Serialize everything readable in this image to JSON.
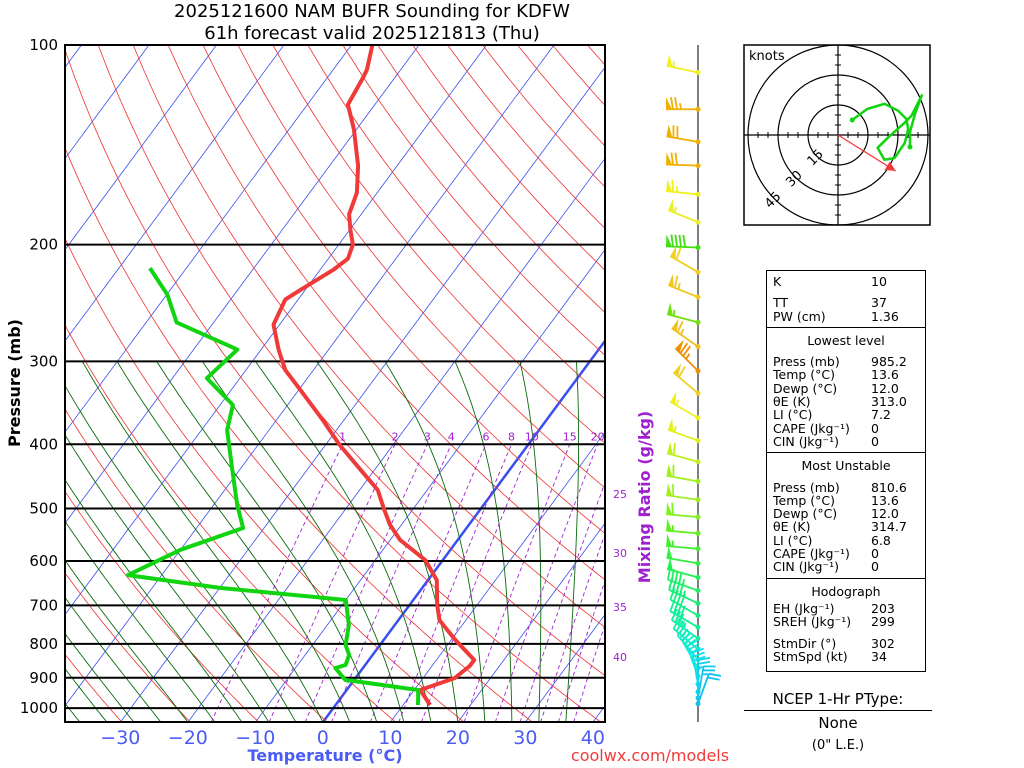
{
  "header": {
    "title_line1": "2025121600 NAM BUFR Sounding for KDFW",
    "title_line2": "61h forecast valid 2025121813 (Thu)"
  },
  "footer": {
    "credit": "coolwx.com/models"
  },
  "colors": {
    "temperature": "#f03a3a",
    "dewpoint": "#11d411",
    "isotherm": "#3a4ff0",
    "dry_adiabat": "#f03030",
    "moist_adiabat": "#0a6a0a",
    "mixing_ratio": "#a020d0",
    "storm_motion": "#f03a3a"
  },
  "chart_data": {
    "type": "line",
    "subtype": "skew-t log-p",
    "xlabel": "Temperature (°C)",
    "ylabel": "Pressure (mb)",
    "mixing_ratio_label": "Mixing Ratio (g/kg)",
    "ylim": [
      1050,
      100
    ],
    "xlim_at_bottom": [
      -38,
      42
    ],
    "pressure_ticks": [
      "100",
      "200",
      "300",
      "400",
      "500",
      "600",
      "700",
      "800",
      "900",
      "1000"
    ],
    "temperature_ticks": [
      "−30",
      "−20",
      "−10",
      "0",
      "10",
      "20",
      "30",
      "40"
    ],
    "mixing_ratio_top_labels": [
      "1",
      "2",
      "3",
      "4",
      "6",
      "8",
      "10",
      "15",
      "20"
    ],
    "mixing_ratio_side_labels": [
      "25",
      "30",
      "35",
      "40"
    ],
    "series": [
      {
        "name": "Temperature",
        "points": [
          [
            989,
            14.0
          ],
          [
            939,
            10.9
          ],
          [
            901,
            14.7
          ],
          [
            864,
            15.6
          ],
          [
            846,
            15.6
          ],
          [
            789,
            10.6
          ],
          [
            737,
            6.1
          ],
          [
            699,
            4.1
          ],
          [
            641,
            1.3
          ],
          [
            598,
            -2.6
          ],
          [
            558,
            -8.5
          ],
          [
            529,
            -11.7
          ],
          [
            500,
            -14.4
          ],
          [
            469,
            -17.3
          ],
          [
            437,
            -22.1
          ],
          [
            401,
            -27.9
          ],
          [
            368,
            -33.1
          ],
          [
            331,
            -39.8
          ],
          [
            309,
            -44.2
          ],
          [
            288,
            -47.4
          ],
          [
            264,
            -50.9
          ],
          [
            242,
            -51.9
          ],
          [
            234,
            -50.7
          ],
          [
            218,
            -48.0
          ],
          [
            210,
            -47.1
          ],
          [
            200,
            -47.9
          ],
          [
            190,
            -49.9
          ],
          [
            180,
            -51.8
          ],
          [
            167,
            -53.0
          ],
          [
            152,
            -55.8
          ],
          [
            134,
            -60.4
          ],
          [
            123,
            -64.0
          ],
          [
            112,
            -64.7
          ],
          [
            109,
            -65.0
          ],
          [
            100,
            -66.9
          ]
        ]
      },
      {
        "name": "Dewpoint",
        "points": [
          [
            989,
            12.2
          ],
          [
            939,
            10.6
          ],
          [
            913,
            1.1
          ],
          [
            907,
            -1.3
          ],
          [
            870,
            -4.1
          ],
          [
            861,
            -2.9
          ],
          [
            831,
            -3.5
          ],
          [
            803,
            -5.1
          ],
          [
            749,
            -6.8
          ],
          [
            687,
            -10.0
          ],
          [
            659,
            -29.8
          ],
          [
            630,
            -45.0
          ],
          [
            577,
            -40.0
          ],
          [
            535,
            -33.1
          ],
          [
            494,
            -36.5
          ],
          [
            437,
            -41.1
          ],
          [
            381,
            -46.2
          ],
          [
            349,
            -48.1
          ],
          [
            318,
            -54.9
          ],
          [
            288,
            -53.5
          ],
          [
            262,
            -65.5
          ],
          [
            238,
            -69.9
          ],
          [
            217,
            -75.4
          ]
        ]
      }
    ],
    "wind_barbs": [
      {
        "p": 110,
        "dir": 282,
        "spd": 55,
        "color": "#f0f020"
      },
      {
        "p": 125,
        "dir": 270,
        "spd": 75,
        "color": "#f0b000"
      },
      {
        "p": 140,
        "dir": 280,
        "spd": 70,
        "color": "#f0b000"
      },
      {
        "p": 152,
        "dir": 272,
        "spd": 70,
        "color": "#f0b000"
      },
      {
        "p": 168,
        "dir": 276,
        "spd": 65,
        "color": "#f0f020"
      },
      {
        "p": 185,
        "dir": 292,
        "spd": 55,
        "color": "#e8f020"
      },
      {
        "p": 202,
        "dir": 272,
        "spd": 90,
        "color": "#40e010"
      },
      {
        "p": 220,
        "dir": 300,
        "spd": 60,
        "color": "#f0d020"
      },
      {
        "p": 240,
        "dir": 292,
        "spd": 65,
        "color": "#f0c820"
      },
      {
        "p": 262,
        "dir": 285,
        "spd": 55,
        "color": "#70e010"
      },
      {
        "p": 285,
        "dir": 305,
        "spd": 65,
        "color": "#f0c020"
      },
      {
        "p": 310,
        "dir": 315,
        "spd": 75,
        "color": "#f09000"
      },
      {
        "p": 335,
        "dir": 310,
        "spd": 60,
        "color": "#f0d020"
      },
      {
        "p": 365,
        "dir": 300,
        "spd": 55,
        "color": "#f0f020"
      },
      {
        "p": 395,
        "dir": 290,
        "spd": 55,
        "color": "#e0f020"
      },
      {
        "p": 425,
        "dir": 285,
        "spd": 60,
        "color": "#c0f020"
      },
      {
        "p": 455,
        "dir": 280,
        "spd": 60,
        "color": "#a0f020"
      },
      {
        "p": 485,
        "dir": 278,
        "spd": 60,
        "color": "#a0f020"
      },
      {
        "p": 515,
        "dir": 275,
        "spd": 60,
        "color": "#80f020"
      },
      {
        "p": 545,
        "dir": 275,
        "spd": 55,
        "color": "#60f020"
      },
      {
        "p": 575,
        "dir": 275,
        "spd": 55,
        "color": "#40f030"
      },
      {
        "p": 605,
        "dir": 280,
        "spd": 50,
        "color": "#30f040"
      },
      {
        "p": 635,
        "dir": 285,
        "spd": 50,
        "color": "#20f050"
      },
      {
        "p": 665,
        "dir": 290,
        "spd": 45,
        "color": "#20f060"
      },
      {
        "p": 695,
        "dir": 295,
        "spd": 45,
        "color": "#10f070"
      },
      {
        "p": 725,
        "dir": 300,
        "spd": 40,
        "color": "#10f080"
      },
      {
        "p": 755,
        "dir": 300,
        "spd": 40,
        "color": "#10f090"
      },
      {
        "p": 785,
        "dir": 305,
        "spd": 35,
        "color": "#10f0a0"
      },
      {
        "p": 815,
        "dir": 310,
        "spd": 35,
        "color": "#10f0b0"
      },
      {
        "p": 845,
        "dir": 320,
        "spd": 35,
        "color": "#10f0c0"
      },
      {
        "p": 870,
        "dir": 330,
        "spd": 30,
        "color": "#10f0d0"
      },
      {
        "p": 895,
        "dir": 340,
        "spd": 30,
        "color": "#10e8e0"
      },
      {
        "p": 920,
        "dir": 350,
        "spd": 30,
        "color": "#10e0f0"
      },
      {
        "p": 945,
        "dir": 0,
        "spd": 25,
        "color": "#10d0f0"
      },
      {
        "p": 965,
        "dir": 10,
        "spd": 25,
        "color": "#10c8f0"
      },
      {
        "p": 985,
        "dir": 20,
        "spd": 20,
        "color": "#10c0f0"
      }
    ],
    "hodograph": {
      "units_label": "knots",
      "ring_labels": [
        "15",
        "30",
        "45"
      ],
      "ring_values": [
        15,
        30,
        45
      ],
      "uv_knots": [
        [
          7.1,
          7.5
        ],
        [
          14.6,
          13.0
        ],
        [
          23.2,
          15.6
        ],
        [
          30.0,
          12.2
        ],
        [
          34.2,
          8.0
        ],
        [
          35.1,
          2.9
        ],
        [
          33.4,
          -3.9
        ],
        [
          28.3,
          -11.5
        ],
        [
          23.2,
          -12.4
        ],
        [
          19.8,
          -6.4
        ],
        [
          24.9,
          -1.4
        ],
        [
          32.5,
          5.4
        ],
        [
          36.8,
          9.7
        ],
        [
          41.9,
          19.8
        ],
        [
          38.5,
          10.5
        ],
        [
          36.0,
          1.5
        ],
        [
          36.0,
          -6.0
        ]
      ],
      "storm_motion": {
        "dir_deg": 302,
        "speed_kt": 34
      }
    }
  },
  "stats": {
    "indices": [
      {
        "label": "K",
        "value": "10"
      },
      {
        "label": "TT",
        "value": "37"
      },
      {
        "label": "PW (cm)",
        "value": "1.36"
      }
    ],
    "lowest_level": {
      "title": "Lowest level",
      "rows": [
        {
          "label": "Press (mb)",
          "value": "985.2"
        },
        {
          "label": "Temp (°C)",
          "value": "13.6"
        },
        {
          "label": "Dewp (°C)",
          "value": "12.0"
        },
        {
          "label": "θE (K)",
          "value": "313.0"
        },
        {
          "label": "LI (°C)",
          "value": "7.2"
        },
        {
          "label": "CAPE (Jkg⁻¹)",
          "value": "0"
        },
        {
          "label": "CIN (Jkg⁻¹)",
          "value": "0"
        }
      ]
    },
    "most_unstable": {
      "title": "Most Unstable",
      "rows": [
        {
          "label": "Press (mb)",
          "value": "810.6"
        },
        {
          "label": "Temp (°C)",
          "value": "13.6"
        },
        {
          "label": "Dewp (°C)",
          "value": "12.0"
        },
        {
          "label": "θE (K)",
          "value": "314.7"
        },
        {
          "label": "LI (°C)",
          "value": "6.8"
        },
        {
          "label": "CAPE (Jkg⁻¹)",
          "value": "0"
        },
        {
          "label": "CIN (Jkg⁻¹)",
          "value": "0"
        }
      ]
    },
    "hodograph": {
      "title": "Hodograph",
      "rows": [
        {
          "label": "EH (Jkg⁻¹)",
          "value": "203"
        },
        {
          "label": "SREH (Jkg⁻¹)",
          "value": "299"
        },
        {
          "label": "StmDir (°)",
          "value": "302"
        },
        {
          "label": "StmSpd (kt)",
          "value": "34"
        }
      ]
    }
  },
  "ptype": {
    "title": "NCEP 1-Hr PType:",
    "value": "None",
    "snow": "(0\" L.E.)"
  }
}
